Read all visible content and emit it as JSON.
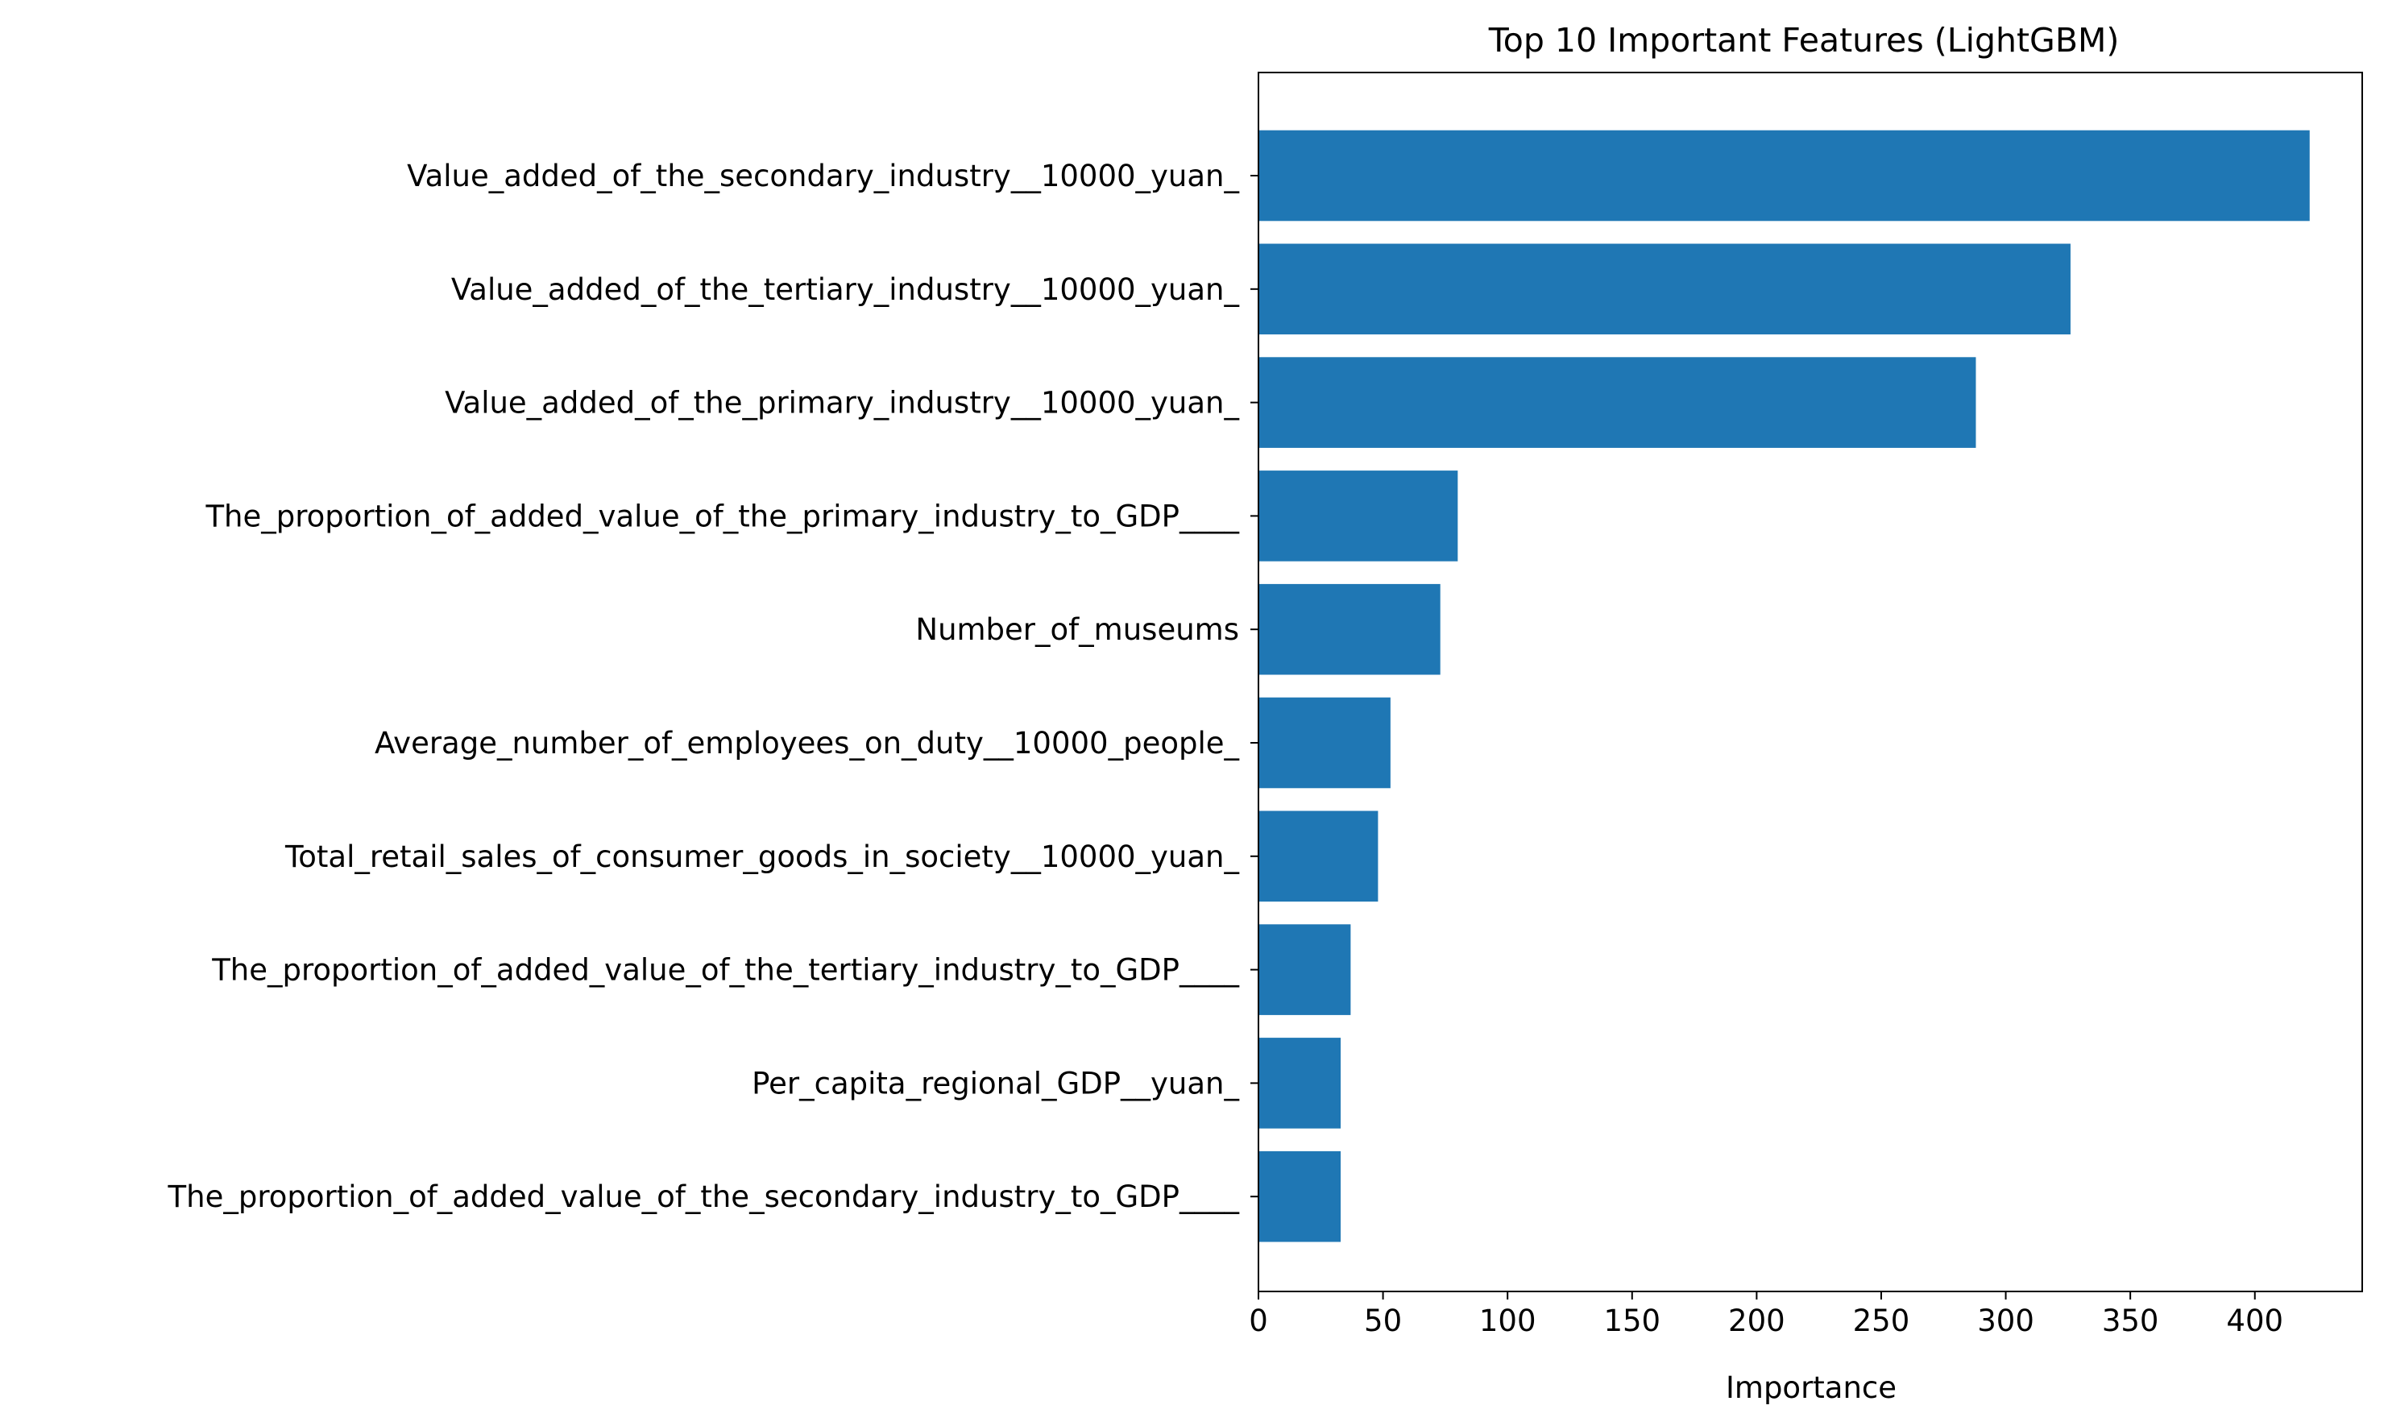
{
  "chart_data": {
    "type": "bar",
    "orientation": "horizontal",
    "title": "Top 10 Important Features (LightGBM)",
    "xlabel": "Importance",
    "ylabel": "",
    "categories": [
      "Value_added_of_the_secondary_industry__10000_yuan_",
      "Value_added_of_the_tertiary_industry__10000_yuan_",
      "Value_added_of_the_primary_industry__10000_yuan_",
      "The_proportion_of_added_value_of_the_primary_industry_to_GDP____",
      "Number_of_museums",
      "Average_number_of_employees_on_duty__10000_people_",
      "Total_retail_sales_of_consumer_goods_in_society__10000_yuan_",
      "The_proportion_of_added_value_of_the_tertiary_industry_to_GDP____",
      "Per_capita_regional_GDP__yuan_",
      "The_proportion_of_added_value_of_the_secondary_industry_to_GDP____"
    ],
    "values": [
      422,
      326,
      288,
      80,
      73,
      53,
      48,
      37,
      33,
      33
    ],
    "xlim": [
      0,
      443.1
    ],
    "xticks": [
      0,
      50,
      100,
      150,
      200,
      250,
      300,
      350,
      400
    ],
    "grid": false,
    "legend": "none",
    "colors": {
      "bar": "#1f77b4",
      "axis": "#000000",
      "background": "#ffffff"
    }
  }
}
